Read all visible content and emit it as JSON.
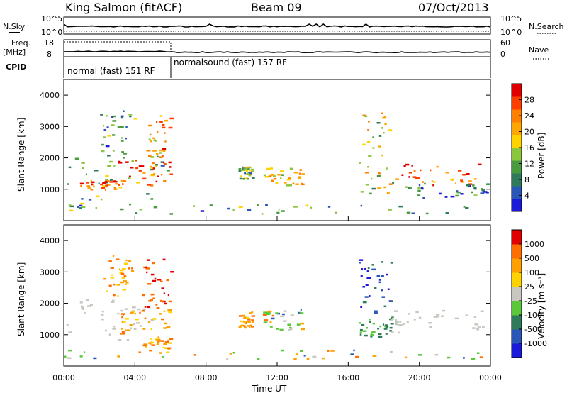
{
  "header": {
    "station": "King Salmon (fitACF)",
    "beam": "Beam 09",
    "date": "07/Oct/2013"
  },
  "status_panels": {
    "nsky_label": "N.Sky",
    "nsearch_label": "N.Search",
    "nsky_ticks": [
      "10^5",
      "10^0"
    ],
    "nsearch_ticks": [
      "10^5",
      "10^0"
    ],
    "freq_label": "Freq.",
    "freq_unit": "[MHz]",
    "freq_ticks": [
      "18",
      "8"
    ],
    "nave_label": "Nave",
    "nave_ticks": [
      "60",
      "0"
    ],
    "cpid_label": "CPID",
    "cpid_segments": [
      {
        "label": "normal (fast) 151 RF",
        "start_h": 0,
        "end_h": 6
      },
      {
        "label": "normalsound (fast) 157 RF",
        "start_h": 6,
        "end_h": 24
      }
    ]
  },
  "chart_data": [
    {
      "type": "heatmap",
      "name": "power",
      "ylabel": "Slant Range [km]",
      "ylim": [
        0,
        4500
      ],
      "yticks": [
        1000,
        2000,
        3000,
        4000
      ],
      "xlim": [
        0,
        24
      ],
      "colorbar": {
        "label": "Power [dB]",
        "ticks": [
          "28",
          "24",
          "20",
          "16",
          "12",
          "8",
          "4"
        ],
        "colors": [
          "#1a1ad8",
          "#2a56b8",
          "#2f7a5a",
          "#4a9a40",
          "#8cc63f",
          "#ffd200",
          "#ffa500",
          "#ff7f00",
          "#ff3f00",
          "#e00000"
        ]
      },
      "regions": [
        {
          "t0": 0.0,
          "t1": 6.0,
          "r0": 300,
          "r1": 2100,
          "level": 0.35
        },
        {
          "t0": 0.8,
          "t1": 3.2,
          "r0": 950,
          "r1": 1250,
          "level": 0.8
        },
        {
          "t0": 3.0,
          "t1": 6.0,
          "r0": 1100,
          "r1": 1900,
          "level": 0.85
        },
        {
          "t0": 4.6,
          "t1": 6.0,
          "r0": 2000,
          "r1": 3400,
          "level": 0.7
        },
        {
          "t0": 2.0,
          "t1": 4.0,
          "r0": 2000,
          "r1": 3500,
          "level": 0.3
        },
        {
          "t0": 9.8,
          "t1": 10.6,
          "r0": 1300,
          "r1": 1700,
          "level": 0.4
        },
        {
          "t0": 11.2,
          "t1": 13.4,
          "r0": 1100,
          "r1": 1700,
          "level": 0.6
        },
        {
          "t0": 16.6,
          "t1": 18.3,
          "r0": 800,
          "r1": 3400,
          "level": 0.5
        },
        {
          "t0": 18.2,
          "t1": 24.0,
          "r0": 1100,
          "r1": 1800,
          "level": 0.8
        },
        {
          "t0": 18.0,
          "t1": 24.0,
          "r0": 700,
          "r1": 1200,
          "level": 0.2
        },
        {
          "t0": 0.0,
          "t1": 24.0,
          "r0": 200,
          "r1": 500,
          "level": 0.3
        }
      ]
    },
    {
      "type": "heatmap",
      "name": "velocity",
      "xlabel": "Time UT",
      "ylabel": "Slant Range [km]",
      "ylim": [
        0,
        4500
      ],
      "yticks": [
        1000,
        2000,
        3000,
        4000
      ],
      "xlim": [
        0,
        24
      ],
      "xticks": [
        "00:00",
        "04:00",
        "08:00",
        "12:00",
        "16:00",
        "20:00",
        "00:00"
      ],
      "colorbar": {
        "label": "Velocity [m s⁻¹]",
        "ticks": [
          "1000",
          "500",
          "100",
          "25",
          "-25",
          "-100",
          "-500",
          "-1000"
        ],
        "colors": [
          "#1a1ad8",
          "#2a56b8",
          "#2f7a5a",
          "#5ac83a",
          "#c8c8c0",
          "#ffd200",
          "#ff9f00",
          "#ff6f00",
          "#e00000"
        ]
      },
      "regions": [
        {
          "t0": 0.0,
          "t1": 5.0,
          "r0": 800,
          "r1": 2100,
          "kind": "grey"
        },
        {
          "t0": 3.0,
          "t1": 6.0,
          "r0": 1000,
          "r1": 1800,
          "kind": "orange"
        },
        {
          "t0": 4.4,
          "t1": 6.0,
          "r0": 1800,
          "r1": 3400,
          "kind": "red"
        },
        {
          "t0": 2.2,
          "t1": 3.8,
          "r0": 2200,
          "r1": 3500,
          "kind": "orange"
        },
        {
          "t0": 4.2,
          "t1": 6.0,
          "r0": 400,
          "r1": 900,
          "kind": "orange"
        },
        {
          "t0": 9.8,
          "t1": 10.6,
          "r0": 1200,
          "r1": 1700,
          "kind": "orange"
        },
        {
          "t0": 11.2,
          "t1": 13.4,
          "r0": 1100,
          "r1": 1800,
          "kind": "mixed"
        },
        {
          "t0": 16.6,
          "t1": 18.4,
          "r0": 1500,
          "r1": 3400,
          "kind": "blue"
        },
        {
          "t0": 16.6,
          "t1": 18.4,
          "r0": 900,
          "r1": 1500,
          "kind": "green"
        },
        {
          "t0": 18.2,
          "t1": 24.0,
          "r0": 1000,
          "r1": 1800,
          "kind": "grey"
        },
        {
          "t0": 0.0,
          "t1": 24.0,
          "r0": 200,
          "r1": 500,
          "kind": "mixed"
        }
      ]
    }
  ]
}
